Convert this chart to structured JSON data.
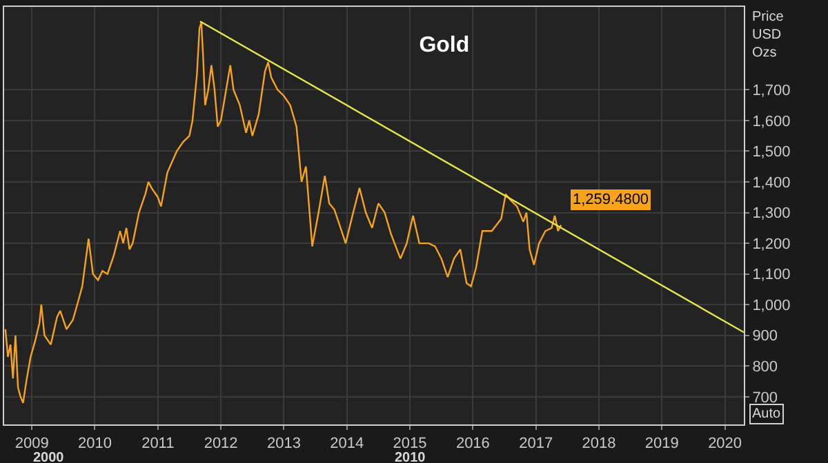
{
  "chart_data": {
    "type": "line",
    "title": "Gold",
    "ylabel": "Price\nUSD\nOzs",
    "series": [
      {
        "color": "#f7a31c",
        "x": [
          2008.58,
          2008.62,
          2008.66,
          2008.7,
          2008.74,
          2008.78,
          2008.82,
          2008.86,
          2008.92,
          2008.98,
          2009.05,
          2009.12,
          2009.15,
          2009.2,
          2009.3,
          2009.4,
          2009.45,
          2009.55,
          2009.65,
          2009.72,
          2009.8,
          2009.9,
          2009.97,
          2010.05,
          2010.12,
          2010.2,
          2010.3,
          2010.4,
          2010.45,
          2010.5,
          2010.55,
          2010.6,
          2010.7,
          2010.8,
          2010.85,
          2010.9,
          2011.0,
          2011.05,
          2011.15,
          2011.3,
          2011.4,
          2011.5,
          2011.55,
          2011.62,
          2011.66,
          2011.69,
          2011.72,
          2011.75,
          2011.8,
          2011.85,
          2011.9,
          2011.95,
          2012.0,
          2012.1,
          2012.15,
          2012.2,
          2012.3,
          2012.4,
          2012.45,
          2012.5,
          2012.6,
          2012.7,
          2012.75,
          2012.8,
          2012.9,
          2013.0,
          2013.1,
          2013.2,
          2013.28,
          2013.35,
          2013.45,
          2013.55,
          2013.65,
          2013.72,
          2013.8,
          2013.9,
          2013.98,
          2014.1,
          2014.2,
          2014.3,
          2014.4,
          2014.5,
          2014.6,
          2014.7,
          2014.85,
          2014.95,
          2015.05,
          2015.15,
          2015.3,
          2015.4,
          2015.5,
          2015.6,
          2015.7,
          2015.8,
          2015.9,
          2015.97,
          2016.05,
          2016.15,
          2016.3,
          2016.45,
          2016.52,
          2016.6,
          2016.7,
          2016.8,
          2016.85,
          2016.9,
          2016.97,
          2017.05,
          2017.15,
          2017.25,
          2017.3,
          2017.35,
          2017.4
        ],
        "values": [
          920,
          830,
          870,
          760,
          900,
          730,
          700,
          680,
          760,
          830,
          880,
          940,
          1000,
          900,
          870,
          960,
          980,
          920,
          950,
          1000,
          1060,
          1215,
          1100,
          1080,
          1110,
          1100,
          1160,
          1240,
          1200,
          1250,
          1180,
          1200,
          1300,
          1360,
          1400,
          1380,
          1350,
          1320,
          1430,
          1500,
          1530,
          1550,
          1600,
          1750,
          1900,
          1920,
          1800,
          1650,
          1700,
          1780,
          1700,
          1580,
          1600,
          1720,
          1780,
          1700,
          1650,
          1560,
          1600,
          1550,
          1620,
          1760,
          1790,
          1740,
          1700,
          1680,
          1650,
          1580,
          1400,
          1450,
          1190,
          1300,
          1420,
          1330,
          1310,
          1250,
          1200,
          1300,
          1380,
          1300,
          1250,
          1330,
          1300,
          1230,
          1150,
          1200,
          1290,
          1200,
          1200,
          1190,
          1150,
          1090,
          1150,
          1180,
          1070,
          1060,
          1120,
          1240,
          1240,
          1280,
          1360,
          1340,
          1320,
          1270,
          1300,
          1180,
          1130,
          1200,
          1240,
          1250,
          1290,
          1240,
          1259.48
        ]
      },
      {
        "color": "#e8e84a",
        "x": [
          2011.67,
          2020.3
        ],
        "values": [
          1923,
          910
        ]
      }
    ],
    "xlim": [
      2008.56,
      2020.3
    ],
    "xticks": [
      2009,
      2010,
      2011,
      2012,
      2013,
      2014,
      2015,
      2016,
      2017,
      2018,
      2019,
      2020
    ],
    "ylim": [
      610,
      1970
    ],
    "yticks": [
      {
        "value": 700,
        "label": "700"
      },
      {
        "value": 800,
        "label": "800"
      },
      {
        "value": 900,
        "label": "900"
      },
      {
        "value": 1000,
        "label": "1,000"
      },
      {
        "value": 1100,
        "label": "1,100"
      },
      {
        "value": 1200,
        "label": "1,200"
      },
      {
        "value": 1300,
        "label": "1,300"
      },
      {
        "value": 1400,
        "label": "1,400"
      },
      {
        "value": 1500,
        "label": "1,500"
      },
      {
        "value": 1600,
        "label": "1,600"
      },
      {
        "value": 1700,
        "label": "1,700"
      }
    ],
    "grid": true,
    "annotations": [
      {
        "text": "1,259.4800",
        "x": 2017.4,
        "y": 1259.48
      },
      "2000",
      "2010",
      "Auto"
    ]
  }
}
